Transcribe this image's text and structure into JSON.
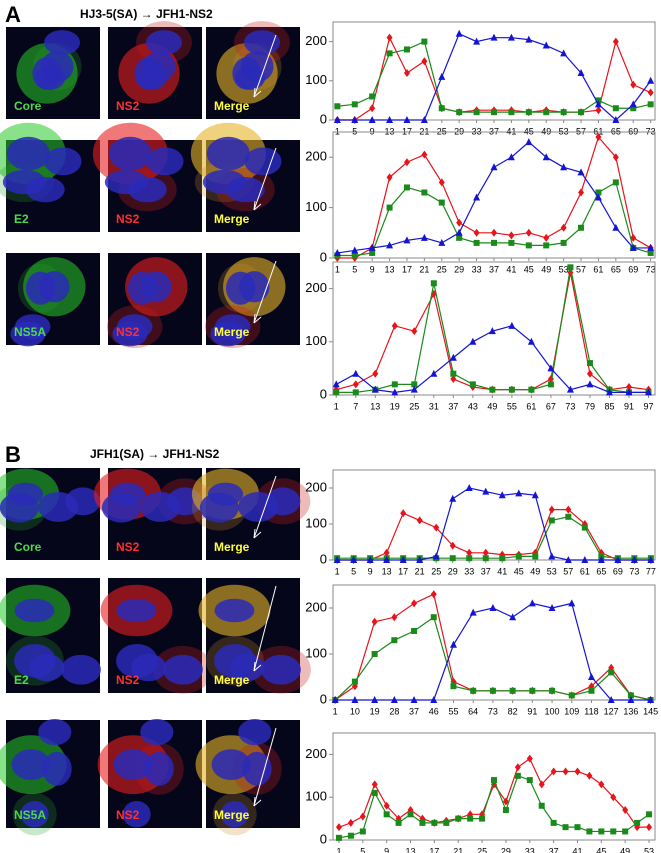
{
  "panels": [
    {
      "label": "A",
      "title": "HJ3-5(SA) → JFH1-NS2",
      "rows": [
        [
          "Core",
          "NS2",
          "Merge"
        ],
        [
          "E2",
          "NS2",
          "Merge"
        ],
        [
          "NS5A",
          "NS2",
          "Merge"
        ]
      ]
    },
    {
      "label": "B",
      "title": "JFH1(SA) → JFH1-NS2",
      "rows": [
        [
          "Core",
          "NS2",
          "Merge"
        ],
        [
          "E2",
          "NS2",
          "Merge"
        ],
        [
          "NS5A",
          "NS2",
          "Merge"
        ]
      ]
    }
  ],
  "chart_data": [
    {
      "type": "line",
      "x": [
        1,
        5,
        9,
        13,
        17,
        21,
        25,
        29,
        33,
        37,
        41,
        45,
        49,
        53,
        57,
        61,
        65,
        69,
        73
      ],
      "xlim": [
        0,
        74
      ],
      "xticks": [
        1,
        5,
        9,
        13,
        17,
        21,
        25,
        29,
        33,
        37,
        41,
        45,
        49,
        53,
        57,
        61,
        65,
        69,
        73
      ],
      "ylim": [
        0,
        250
      ],
      "yticks": [
        0,
        100,
        200
      ],
      "series": [
        {
          "color": "#e8141c",
          "marker": "diamond",
          "values": [
            0,
            0,
            30,
            210,
            120,
            150,
            30,
            20,
            25,
            25,
            25,
            20,
            25,
            20,
            20,
            25,
            200,
            90,
            70
          ]
        },
        {
          "color": "#1a8a1a",
          "marker": "square",
          "values": [
            35,
            40,
            60,
            170,
            180,
            200,
            30,
            20,
            20,
            20,
            20,
            20,
            20,
            20,
            20,
            50,
            30,
            30,
            40
          ]
        },
        {
          "color": "#1414d2",
          "marker": "triangle",
          "values": [
            0,
            0,
            0,
            0,
            0,
            0,
            110,
            220,
            200,
            210,
            210,
            205,
            190,
            170,
            120,
            40,
            0,
            40,
            100
          ]
        }
      ]
    },
    {
      "type": "line",
      "x": [
        1,
        5,
        9,
        13,
        17,
        21,
        25,
        29,
        33,
        37,
        41,
        45,
        49,
        53,
        57,
        61,
        65,
        69,
        73
      ],
      "xlim": [
        0,
        74
      ],
      "xticks": [
        1,
        5,
        9,
        13,
        17,
        21,
        25,
        29,
        33,
        37,
        41,
        45,
        49,
        53,
        57,
        61,
        65,
        69,
        73
      ],
      "ylim": [
        0,
        250
      ],
      "yticks": [
        0,
        100,
        200
      ],
      "series": [
        {
          "color": "#e8141c",
          "marker": "diamond",
          "values": [
            0,
            0,
            20,
            160,
            190,
            205,
            150,
            70,
            50,
            50,
            45,
            50,
            40,
            60,
            130,
            240,
            200,
            40,
            20
          ]
        },
        {
          "color": "#1a8a1a",
          "marker": "square",
          "values": [
            5,
            5,
            10,
            100,
            140,
            130,
            110,
            40,
            30,
            30,
            30,
            25,
            25,
            30,
            60,
            130,
            150,
            20,
            10
          ]
        },
        {
          "color": "#1414d2",
          "marker": "triangle",
          "values": [
            10,
            15,
            20,
            25,
            35,
            40,
            30,
            50,
            120,
            180,
            200,
            230,
            200,
            180,
            170,
            120,
            60,
            20,
            20
          ]
        }
      ]
    },
    {
      "type": "line",
      "x": [
        1,
        7,
        13,
        19,
        25,
        31,
        37,
        43,
        49,
        55,
        61,
        67,
        73,
        79,
        85,
        91,
        97
      ],
      "xlim": [
        0,
        99
      ],
      "xticks": [
        1,
        7,
        13,
        19,
        25,
        31,
        37,
        43,
        49,
        55,
        61,
        67,
        73,
        79,
        85,
        91,
        97
      ],
      "ylim": [
        0,
        250
      ],
      "yticks": [
        0,
        100,
        200
      ],
      "series": [
        {
          "color": "#e8141c",
          "marker": "diamond",
          "values": [
            10,
            20,
            40,
            130,
            120,
            190,
            30,
            15,
            10,
            10,
            10,
            30,
            230,
            40,
            10,
            15,
            10
          ]
        },
        {
          "color": "#1a8a1a",
          "marker": "square",
          "values": [
            5,
            5,
            10,
            20,
            20,
            210,
            40,
            20,
            10,
            10,
            10,
            20,
            240,
            60,
            10,
            5,
            5
          ]
        },
        {
          "color": "#1414d2",
          "marker": "triangle",
          "values": [
            20,
            40,
            10,
            5,
            10,
            40,
            70,
            100,
            120,
            130,
            100,
            50,
            10,
            20,
            5,
            5,
            5
          ]
        }
      ]
    },
    {
      "type": "line",
      "x": [
        1,
        5,
        9,
        13,
        17,
        21,
        25,
        29,
        33,
        37,
        41,
        45,
        49,
        53,
        57,
        61,
        65,
        69,
        73,
        77
      ],
      "xlim": [
        0,
        78
      ],
      "xticks": [
        1,
        5,
        9,
        13,
        17,
        21,
        25,
        29,
        33,
        37,
        41,
        45,
        49,
        53,
        57,
        61,
        65,
        69,
        73,
        77
      ],
      "ylim": [
        0,
        250
      ],
      "yticks": [
        0,
        100,
        200
      ],
      "series": [
        {
          "color": "#e8141c",
          "marker": "diamond",
          "values": [
            0,
            0,
            0,
            20,
            130,
            110,
            90,
            40,
            20,
            20,
            15,
            15,
            20,
            140,
            140,
            100,
            20,
            0,
            0,
            0
          ]
        },
        {
          "color": "#1a8a1a",
          "marker": "square",
          "values": [
            5,
            5,
            5,
            5,
            5,
            5,
            5,
            5,
            5,
            5,
            5,
            10,
            10,
            110,
            120,
            90,
            10,
            5,
            5,
            5
          ]
        },
        {
          "color": "#1414d2",
          "marker": "triangle",
          "values": [
            0,
            0,
            0,
            0,
            0,
            0,
            10,
            170,
            200,
            190,
            180,
            185,
            180,
            10,
            0,
            0,
            0,
            0,
            0,
            0
          ]
        }
      ]
    },
    {
      "type": "line",
      "x": [
        1,
        10,
        19,
        28,
        37,
        46,
        55,
        64,
        73,
        82,
        91,
        100,
        109,
        118,
        127,
        136,
        145
      ],
      "xlim": [
        0,
        147
      ],
      "xticks": [
        1,
        10,
        19,
        28,
        37,
        46,
        55,
        64,
        73,
        82,
        91,
        100,
        109,
        118,
        127,
        136,
        145
      ],
      "ylim": [
        0,
        250
      ],
      "yticks": [
        0,
        100,
        200
      ],
      "series": [
        {
          "color": "#e8141c",
          "marker": "diamond",
          "values": [
            0,
            30,
            170,
            180,
            210,
            230,
            40,
            20,
            20,
            20,
            20,
            20,
            10,
            30,
            70,
            10,
            0
          ]
        },
        {
          "color": "#1a8a1a",
          "marker": "square",
          "values": [
            0,
            40,
            100,
            130,
            150,
            180,
            30,
            20,
            20,
            20,
            20,
            20,
            10,
            20,
            60,
            10,
            0
          ]
        },
        {
          "color": "#1414d2",
          "marker": "triangle",
          "values": [
            0,
            0,
            0,
            0,
            0,
            0,
            120,
            190,
            200,
            180,
            210,
            200,
            210,
            50,
            0,
            0,
            0
          ]
        }
      ]
    },
    {
      "type": "line",
      "x": [
        1,
        3,
        5,
        7,
        9,
        11,
        13,
        15,
        17,
        19,
        21,
        23,
        25,
        27,
        29,
        31,
        33,
        35,
        37,
        39,
        41,
        43,
        45,
        47,
        49,
        51,
        53
      ],
      "xlim": [
        0,
        54
      ],
      "xticks": [
        1,
        5,
        9,
        13,
        17,
        21,
        25,
        29,
        33,
        37,
        41,
        45,
        49,
        53
      ],
      "ylim": [
        0,
        250
      ],
      "yticks": [
        0,
        100,
        200
      ],
      "series": [
        {
          "color": "#e8141c",
          "marker": "diamond",
          "values": [
            30,
            40,
            55,
            130,
            80,
            50,
            70,
            50,
            40,
            45,
            50,
            60,
            60,
            130,
            90,
            170,
            190,
            130,
            160,
            160,
            160,
            150,
            130,
            100,
            70,
            30,
            30
          ]
        },
        {
          "color": "#1a8a1a",
          "marker": "square",
          "values": [
            5,
            10,
            20,
            110,
            60,
            40,
            60,
            40,
            40,
            40,
            50,
            50,
            50,
            140,
            70,
            150,
            140,
            80,
            40,
            30,
            30,
            20,
            20,
            20,
            20,
            40,
            60
          ]
        }
      ]
    }
  ]
}
